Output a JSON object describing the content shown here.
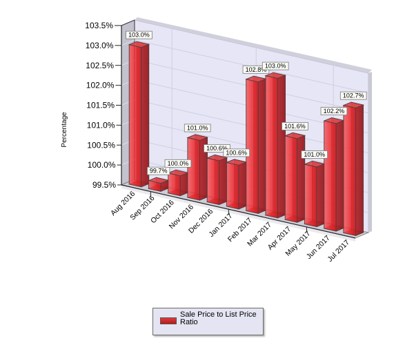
{
  "chart_data": {
    "type": "bar",
    "subtype": "3d-bar",
    "title": "",
    "xlabel": "",
    "ylabel": "Percentage",
    "ylim": [
      99.5,
      103.5
    ],
    "yticks": [
      "99.5%",
      "100.0%",
      "100.5%",
      "101.0%",
      "101.5%",
      "102.0%",
      "102.5%",
      "103.0%",
      "103.5%"
    ],
    "categories": [
      "Aug 2016",
      "Sep 2016",
      "Oct 2016",
      "Nov 2016",
      "Dec 2016",
      "Jan 2017",
      "Feb 2017",
      "Mar 2017",
      "Apr 2017",
      "May 2017",
      "Jun 2017",
      "Jul 2017"
    ],
    "series": [
      {
        "name": "Sale Price to List Price Ratio",
        "color": "#e0262b",
        "values": [
          103.0,
          99.7,
          100.0,
          101.0,
          100.6,
          100.6,
          102.8,
          103.0,
          101.6,
          101.0,
          102.2,
          102.7
        ],
        "labels": [
          "103.0%",
          "99.7%",
          "100.0%",
          "101.0%",
          "100.6%",
          "100.6%",
          "102.8%",
          "103.0%",
          "101.6%",
          "101.0%",
          "102.2%",
          "102.7%"
        ]
      }
    ],
    "grid": true,
    "legend_position": "bottom"
  },
  "legend": {
    "label": "Sale Price to List Price Ratio",
    "swatch_color": "#d42a2a"
  },
  "colors": {
    "bar_face": "#e0262b",
    "back_wall": "#e6e6f6",
    "side_wall": "#c3c3cf",
    "floor": "#cdcdd6"
  }
}
